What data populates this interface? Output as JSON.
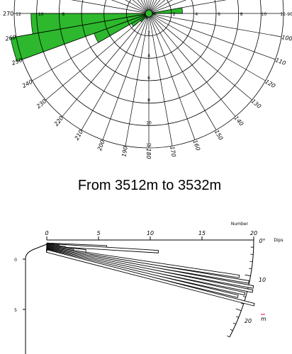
{
  "chart_data": [
    {
      "type": "rose",
      "azimuth_labels": [
        "100",
        "110",
        "120",
        "130",
        "140",
        "150",
        "160",
        "170",
        "180",
        "190",
        "200",
        "210",
        "220",
        "230",
        "240",
        "250",
        "260",
        "270"
      ],
      "radial_labels_left": [
        "12",
        "10",
        "8"
      ],
      "radial_labels_right": [
        "2",
        "4",
        "6",
        "8",
        "10",
        "12-90"
      ],
      "radial_labels_down": [
        "2",
        "4",
        "6",
        "8",
        "10",
        "12"
      ],
      "radial_max": 12,
      "petal_color": "#2db82d",
      "petals": [
        {
          "azimuth_from": 250,
          "azimuth_to": 260,
          "value": 12.5
        },
        {
          "azimuth_from": 260,
          "azimuth_to": 270,
          "value": 10.5
        },
        {
          "azimuth_from": 240,
          "azimuth_to": 250,
          "value": 5.2
        },
        {
          "azimuth_from": 230,
          "azimuth_to": 240,
          "value": 1.8
        },
        {
          "azimuth_from": 220,
          "azimuth_to": 230,
          "value": 1.0
        },
        {
          "azimuth_from": 80,
          "azimuth_to": 90,
          "value": 3.0
        },
        {
          "azimuth_from": 90,
          "azimuth_to": 100,
          "value": 0.6
        },
        {
          "azimuth_from": 200,
          "azimuth_to": 210,
          "value": 0.5
        }
      ]
    },
    {
      "type": "bar",
      "orientation": "dip histogram",
      "title": "From 3512m to 3532m",
      "xlabel": "Number",
      "x_ticks": [
        "0",
        "5",
        "10",
        "15",
        "20"
      ],
      "xlim": [
        0,
        20
      ],
      "arc_label": "Dips",
      "arc_ticks": [
        "0°",
        "10",
        "20"
      ],
      "depth_ticks": [
        "0",
        "5"
      ],
      "mean_label": "m",
      "mean_color": "#e00040",
      "mean_dip_deg": 17.5,
      "bars": [
        {
          "dip": 2.5,
          "value": 5.8
        },
        {
          "dip": 3.5,
          "value": 10.8
        },
        {
          "dip": 4.5,
          "value": 1.2
        },
        {
          "dip": 5.5,
          "value": 1.8
        },
        {
          "dip": 6.5,
          "value": 3.8
        },
        {
          "dip": 7.5,
          "value": 2.6
        },
        {
          "dip": 8.5,
          "value": 18.8
        },
        {
          "dip": 9.5,
          "value": 19.8
        },
        {
          "dip": 10.5,
          "value": 20.3
        },
        {
          "dip": 11.5,
          "value": 20.3
        },
        {
          "dip": 12.5,
          "value": 19.6
        },
        {
          "dip": 13.5,
          "value": 19.0
        },
        {
          "dip": 14.5,
          "value": 20.7
        }
      ]
    }
  ]
}
